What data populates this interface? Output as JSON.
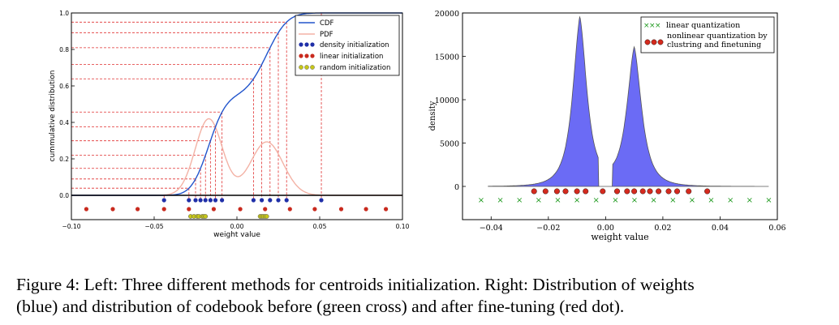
{
  "caption": {
    "line1": "Figure 4: Left: Three different methods for centroids initialization. Right: Distribution of weights",
    "line2": "(blue) and distribution of codebook before (green cross) and after fine-tuning (red dot)."
  },
  "chart_data": [
    {
      "type": "line",
      "title": "",
      "xlabel": "weight value",
      "ylabel": "cummulative distribution",
      "xlim": [
        -0.1,
        0.1
      ],
      "ylim": [
        -0.15,
        1.0
      ],
      "x_ticks": [
        "−0.10",
        "−0.05",
        "0.00",
        "0.05",
        "0.10"
      ],
      "y_ticks": [
        "0.0",
        "0.2",
        "0.4",
        "0.6",
        "0.8",
        "1.0"
      ],
      "grid": false,
      "legend_position": "top-right",
      "series": [
        {
          "name": "CDF",
          "color": "#2255cc",
          "kind": "line"
        },
        {
          "name": "PDF",
          "color": "#f3b2a5",
          "kind": "line"
        },
        {
          "name": "density initialization",
          "color": "#1f2fa8",
          "kind": "points",
          "x": [
            -0.044,
            -0.029,
            -0.025,
            -0.022,
            -0.019,
            -0.016,
            -0.013,
            -0.009,
            0.01,
            0.015,
            0.02,
            0.025,
            0.03,
            0.051
          ]
        },
        {
          "name": "linear initialization",
          "color": "#c92a1e",
          "kind": "points",
          "x": [
            -0.091,
            -0.075,
            -0.06,
            -0.044,
            -0.029,
            -0.014,
            0.002,
            0.017,
            0.032,
            0.047,
            0.063,
            0.078,
            0.09
          ]
        },
        {
          "name": "random initialization",
          "color": "#c6c619",
          "kind": "points",
          "x": [
            -0.028,
            -0.026,
            -0.024,
            -0.023,
            -0.021,
            -0.02,
            -0.019,
            0.014,
            0.015,
            0.016,
            0.017,
            0.018
          ]
        }
      ]
    },
    {
      "type": "area",
      "title": "",
      "xlabel": "weight value",
      "ylabel": "density",
      "xlim": [
        -0.05,
        0.06
      ],
      "ylim": [
        -2000,
        20000
      ],
      "x_ticks": [
        "−0.04",
        "−0.02",
        "0.00",
        "0.02",
        "0.04",
        "0.06"
      ],
      "y_ticks": [
        "0",
        "5000",
        "10000",
        "15000",
        "20000"
      ],
      "grid": false,
      "legend_position": "top-right",
      "series": [
        {
          "name": "weight distribution",
          "color": "#6b6bf5",
          "kind": "area",
          "peaks": [
            {
              "x": -0.009,
              "y": 19500
            },
            {
              "x": 0.01,
              "y": 16000
            }
          ]
        },
        {
          "name": "linear quantization",
          "color": "#1f9a1f",
          "kind": "points",
          "x": [
            -0.0435,
            -0.0368,
            -0.0301,
            -0.0234,
            -0.0167,
            -0.01,
            -0.0033,
            0.0034,
            0.0101,
            0.0168,
            0.0235,
            0.0302,
            0.0369,
            0.0436,
            0.0503,
            0.057
          ]
        },
        {
          "name": "nonlinear quantization by clustring and finetuning",
          "color": "#d42a1e",
          "kind": "points",
          "x": [
            -0.025,
            -0.021,
            -0.017,
            -0.014,
            -0.01,
            -0.007,
            -0.001,
            0.004,
            0.0075,
            0.01,
            0.013,
            0.0155,
            0.0185,
            0.022,
            0.025,
            0.029,
            0.0355
          ]
        }
      ]
    }
  ]
}
